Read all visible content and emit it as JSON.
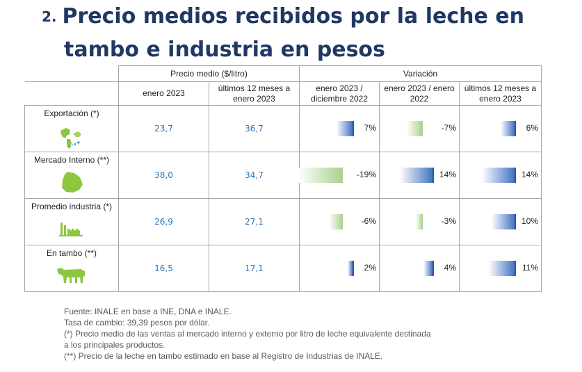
{
  "title": {
    "number": "2.",
    "line1": "Precio medios recibidos por la leche en",
    "line2": "tambo e industria en pesos"
  },
  "table": {
    "group_headers": [
      "Precio medio ($/litro)",
      "Variación"
    ],
    "columns": [
      "enero 2023",
      "últimos 12 meses a enero 2023",
      "enero 2023 / diciembre 2022",
      "enero 2023 / enero 2022",
      "últimos 12 meses a enero 2023"
    ],
    "rows": [
      {
        "label": "Exportación (*)",
        "icon": "world-map-icon",
        "values": [
          "23,7",
          "36,7"
        ],
        "variations": [
          "7%",
          "-7%",
          "6%"
        ],
        "variation_pct": [
          7,
          -7,
          6
        ]
      },
      {
        "label": "Mercado Interno (**)",
        "icon": "uruguay-map-icon",
        "values": [
          "38,0",
          "34,7"
        ],
        "variations": [
          "-19%",
          "14%",
          "14%"
        ],
        "variation_pct": [
          -19,
          14,
          14
        ]
      },
      {
        "label": "Promedio industria (*)",
        "icon": "factory-icon",
        "values": [
          "26,9",
          "27,1"
        ],
        "variations": [
          "-6%",
          "-3%",
          "10%"
        ],
        "variation_pct": [
          -6,
          -3,
          10
        ]
      },
      {
        "label": "En tambo (**)",
        "icon": "cow-icon",
        "values": [
          "16,5",
          "17,1"
        ],
        "variations": [
          "2%",
          "4%",
          "11%"
        ],
        "variation_pct": [
          2,
          4,
          11
        ]
      }
    ]
  },
  "colors": {
    "title": "#1f3864",
    "values": "#2e74b5",
    "positive_bar": "#4472c4",
    "negative_bar": "#a9d08e",
    "icons": "#8dc63f"
  },
  "notes": [
    "Fuente: INALE en base a INE, DNA e INALE.",
    "Tasa de cambio: 39,39 pesos por dólar.",
    "(*) Precio medio de las ventas al mercado interno y externo por litro de leche equivalente destinada",
    "a los principales productos.",
    "(**) Precio de la leche en tambo estimado en base al Registro de Industrias de INALE."
  ]
}
